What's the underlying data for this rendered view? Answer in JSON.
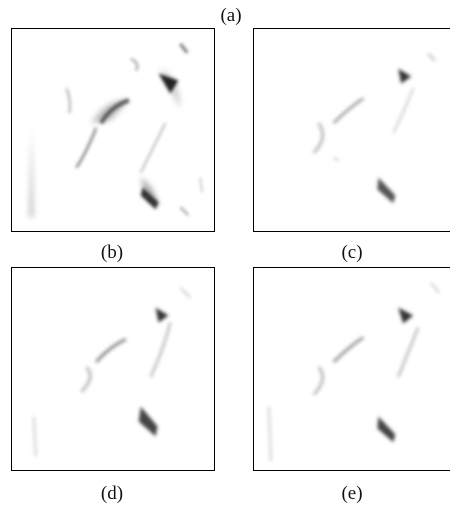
{
  "figure": {
    "label_a": "(a)",
    "label_b": "(b)",
    "label_c": "(c)",
    "label_d": "(d)",
    "label_e": "(e)"
  }
}
